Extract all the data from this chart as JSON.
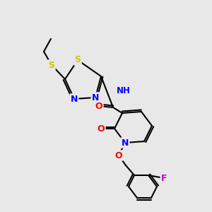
{
  "background_color": "#e8e8e8",
  "bond_color": "#000000",
  "atom_colors": {
    "S": "#cccc00",
    "N": "#0000ff",
    "O": "#ff0000",
    "F": "#cc00cc",
    "H": "#808080",
    "C": "#000000"
  },
  "figsize": [
    3.0,
    3.0
  ],
  "dpi": 100
}
